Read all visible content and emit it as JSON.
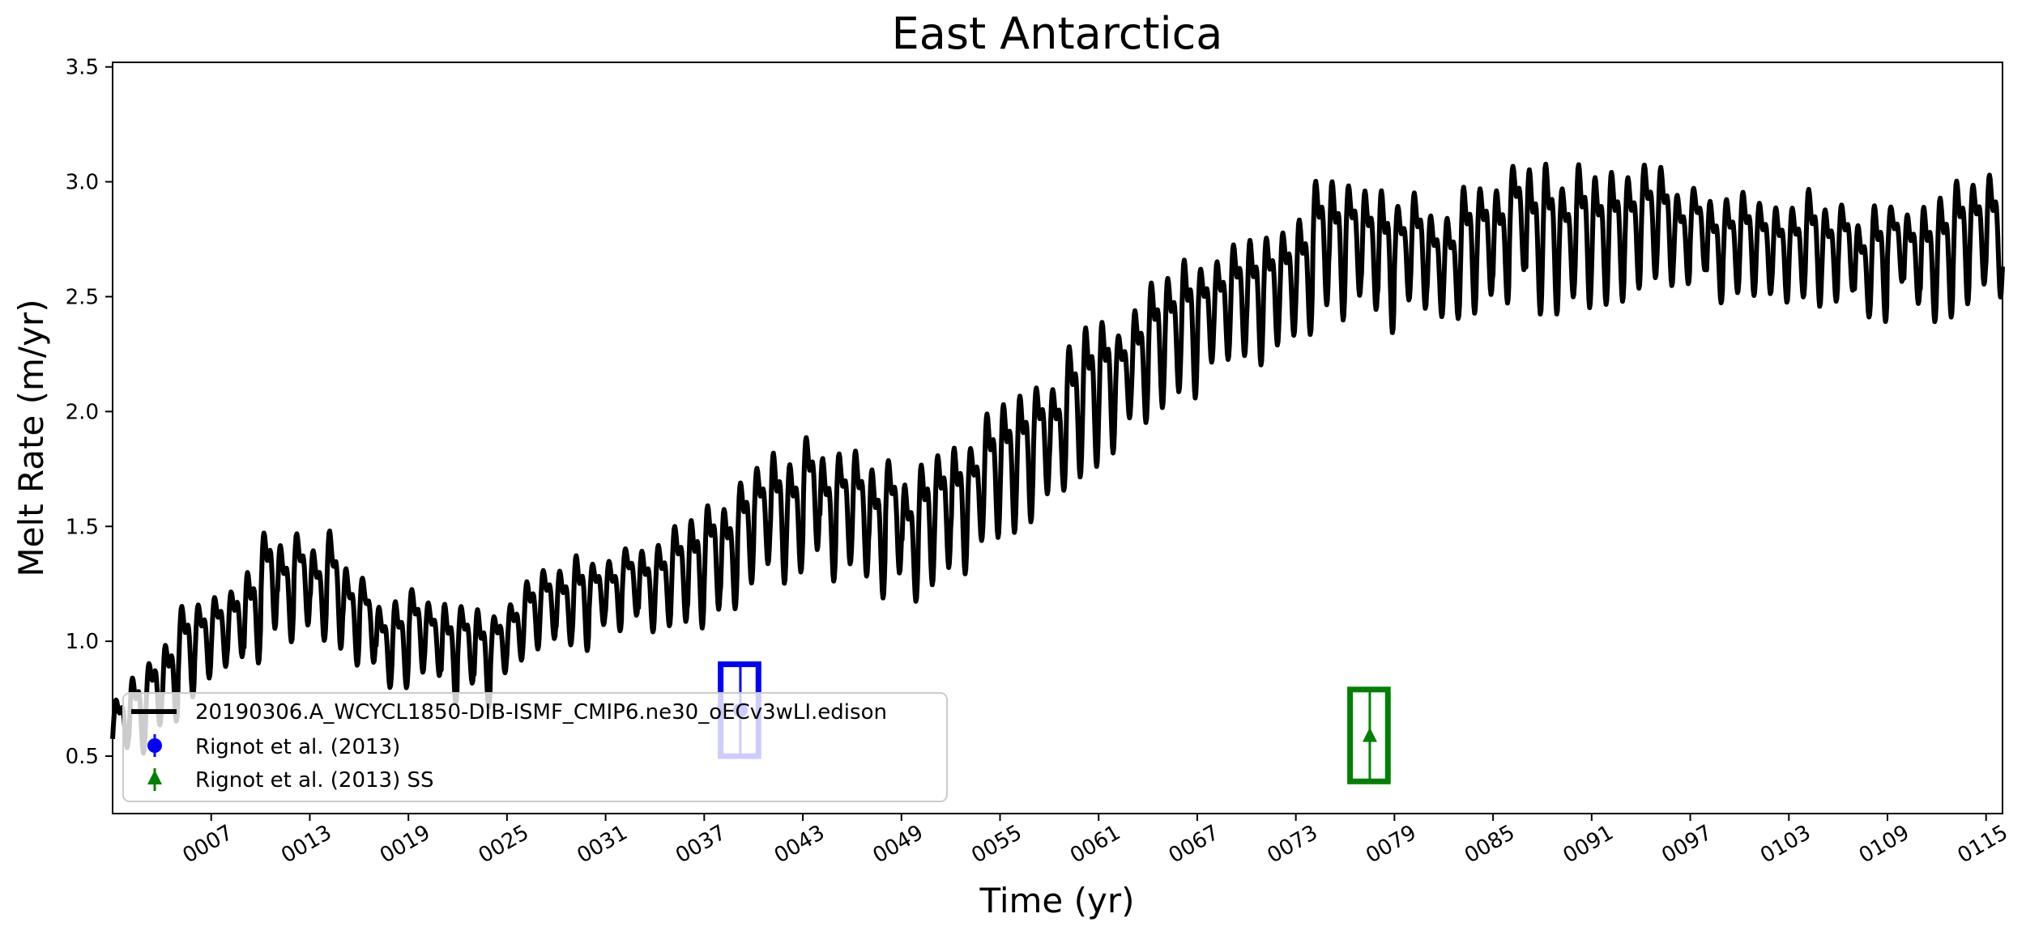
{
  "chart_data": {
    "type": "line",
    "title": "East Antarctica",
    "xlabel": "Time (yr)",
    "ylabel": "Melt Rate (m/yr)",
    "xlim": [
      1.0,
      116.0
    ],
    "ylim": [
      0.25,
      3.52
    ],
    "x_ticks": [
      {
        "value": 7,
        "label": "0007"
      },
      {
        "value": 13,
        "label": "0013"
      },
      {
        "value": 19,
        "label": "0019"
      },
      {
        "value": 25,
        "label": "0025"
      },
      {
        "value": 31,
        "label": "0031"
      },
      {
        "value": 37,
        "label": "0037"
      },
      {
        "value": 43,
        "label": "0043"
      },
      {
        "value": 49,
        "label": "0049"
      },
      {
        "value": 55,
        "label": "0055"
      },
      {
        "value": 61,
        "label": "0061"
      },
      {
        "value": 67,
        "label": "0067"
      },
      {
        "value": 73,
        "label": "0073"
      },
      {
        "value": 79,
        "label": "0079"
      },
      {
        "value": 85,
        "label": "0085"
      },
      {
        "value": 91,
        "label": "0091"
      },
      {
        "value": 97,
        "label": "0097"
      },
      {
        "value": 103,
        "label": "0103"
      },
      {
        "value": 109,
        "label": "0109"
      },
      {
        "value": 115,
        "label": "0115"
      }
    ],
    "y_ticks": [
      {
        "value": 0.5,
        "label": "0.5"
      },
      {
        "value": 1.0,
        "label": "1.0"
      },
      {
        "value": 1.5,
        "label": "1.5"
      },
      {
        "value": 2.0,
        "label": "2.0"
      },
      {
        "value": 2.5,
        "label": "2.5"
      },
      {
        "value": 3.0,
        "label": "3.0"
      },
      {
        "value": 3.5,
        "label": "3.5"
      }
    ],
    "series": [
      {
        "name": "20190306.A_WCYCL1850-DIB-ISMF_CMIP6.ne30_oECv3wLI.edison",
        "color": "#000000",
        "kind": "line",
        "time_range": [
          1.0,
          116.0
        ],
        "annual_mean_anchors": [
          [
            1,
            0.62
          ],
          [
            3,
            0.72
          ],
          [
            5,
            0.95
          ],
          [
            8,
            1.05
          ],
          [
            11,
            1.3
          ],
          [
            14,
            1.25
          ],
          [
            17,
            1.05
          ],
          [
            21,
            1.0
          ],
          [
            24,
            0.95
          ],
          [
            27,
            1.15
          ],
          [
            31,
            1.25
          ],
          [
            36,
            1.3
          ],
          [
            40,
            1.55
          ],
          [
            44,
            1.65
          ],
          [
            47,
            1.55
          ],
          [
            50,
            1.5
          ],
          [
            53,
            1.7
          ],
          [
            56,
            1.85
          ],
          [
            60,
            2.05
          ],
          [
            64,
            2.3
          ],
          [
            68,
            2.45
          ],
          [
            72,
            2.6
          ],
          [
            75,
            2.75
          ],
          [
            79,
            2.75
          ],
          [
            83,
            2.7
          ],
          [
            87,
            2.85
          ],
          [
            90,
            2.8
          ],
          [
            94,
            2.85
          ],
          [
            97,
            2.8
          ],
          [
            100,
            2.75
          ],
          [
            105,
            2.7
          ],
          [
            110,
            2.7
          ],
          [
            113,
            2.75
          ],
          [
            116,
            2.8
          ]
        ],
        "seasonal_amplitude_anchors": [
          [
            1,
            0.12
          ],
          [
            5,
            0.17
          ],
          [
            12,
            0.2
          ],
          [
            20,
            0.17
          ],
          [
            30,
            0.17
          ],
          [
            40,
            0.23
          ],
          [
            50,
            0.23
          ],
          [
            60,
            0.25
          ],
          [
            70,
            0.25
          ],
          [
            80,
            0.25
          ],
          [
            90,
            0.25
          ],
          [
            100,
            0.2
          ],
          [
            110,
            0.2
          ],
          [
            116,
            0.22
          ]
        ]
      },
      {
        "name": "Rignot et al. (2013)",
        "color": "#0000ff",
        "kind": "errorbar",
        "marker": "circle",
        "x": 39.2,
        "y": 0.7,
        "ymin": 0.5,
        "ymax": 0.9,
        "xerr": [
          38.0,
          40.3
        ]
      },
      {
        "name": "Rignot et al. (2013) SS",
        "color": "#008000",
        "kind": "errorbar",
        "marker": "triangle",
        "x": 77.5,
        "y": 0.59,
        "ymin": 0.39,
        "ymax": 0.79,
        "xerr": [
          76.3,
          78.6
        ]
      }
    ],
    "legend": {
      "placement": "lower-left",
      "entries": [
        {
          "label": "20190306.A_WCYCL1850-DIB-ISMF_CMIP6.ne30_oECv3wLI.edison",
          "color": "#000000",
          "symbol": "line"
        },
        {
          "label": "Rignot et al. (2013)",
          "color": "#0000ff",
          "symbol": "circle"
        },
        {
          "label": "Rignot et al. (2013) SS",
          "color": "#008000",
          "symbol": "triangle"
        }
      ]
    }
  }
}
